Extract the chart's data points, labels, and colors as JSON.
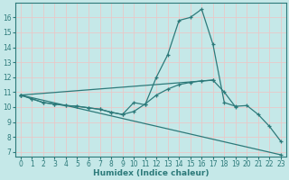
{
  "xlabel": "Humidex (Indice chaleur)",
  "bg_color": "#c5e8e8",
  "line_color": "#2d7a7a",
  "grid_color": "#e8c8c8",
  "xlim": [
    -0.5,
    23.5
  ],
  "ylim": [
    6.7,
    17.0
  ],
  "xticks": [
    0,
    1,
    2,
    3,
    4,
    5,
    6,
    7,
    8,
    9,
    10,
    11,
    12,
    13,
    14,
    15,
    16,
    17,
    18,
    19,
    20,
    21,
    22,
    23
  ],
  "yticks": [
    7,
    8,
    9,
    10,
    11,
    12,
    13,
    14,
    15,
    16
  ],
  "curve1": {
    "x": [
      0,
      1,
      2,
      3,
      4,
      5,
      6,
      7,
      8,
      9,
      10,
      11,
      12,
      13,
      14,
      15,
      16,
      17,
      18,
      19,
      20,
      21,
      22,
      23
    ],
    "y": [
      10.8,
      10.55,
      10.3,
      10.2,
      10.1,
      10.05,
      9.95,
      9.85,
      9.65,
      9.5,
      10.3,
      10.15,
      12.0,
      13.5,
      15.8,
      16.0,
      16.55,
      14.2,
      10.3,
      10.05,
      10.1,
      9.5,
      8.7,
      7.7
    ]
  },
  "curve2": {
    "x": [
      0,
      1,
      2,
      3,
      4,
      5,
      6,
      7,
      8,
      9,
      10,
      11,
      12,
      13,
      14,
      15,
      16,
      17,
      18,
      19
    ],
    "y": [
      10.8,
      10.55,
      10.3,
      10.2,
      10.1,
      10.05,
      9.95,
      9.85,
      9.65,
      9.5,
      9.7,
      10.2,
      10.8,
      11.2,
      11.5,
      11.65,
      11.75,
      11.8,
      11.0,
      10.0
    ]
  },
  "line_diag_down": {
    "x": [
      0,
      23
    ],
    "y": [
      10.8,
      6.8
    ]
  },
  "line_diag_up": {
    "x": [
      0,
      17
    ],
    "y": [
      10.8,
      11.8
    ]
  },
  "tick_fontsize": 5.5,
  "xlabel_fontsize": 6.5
}
